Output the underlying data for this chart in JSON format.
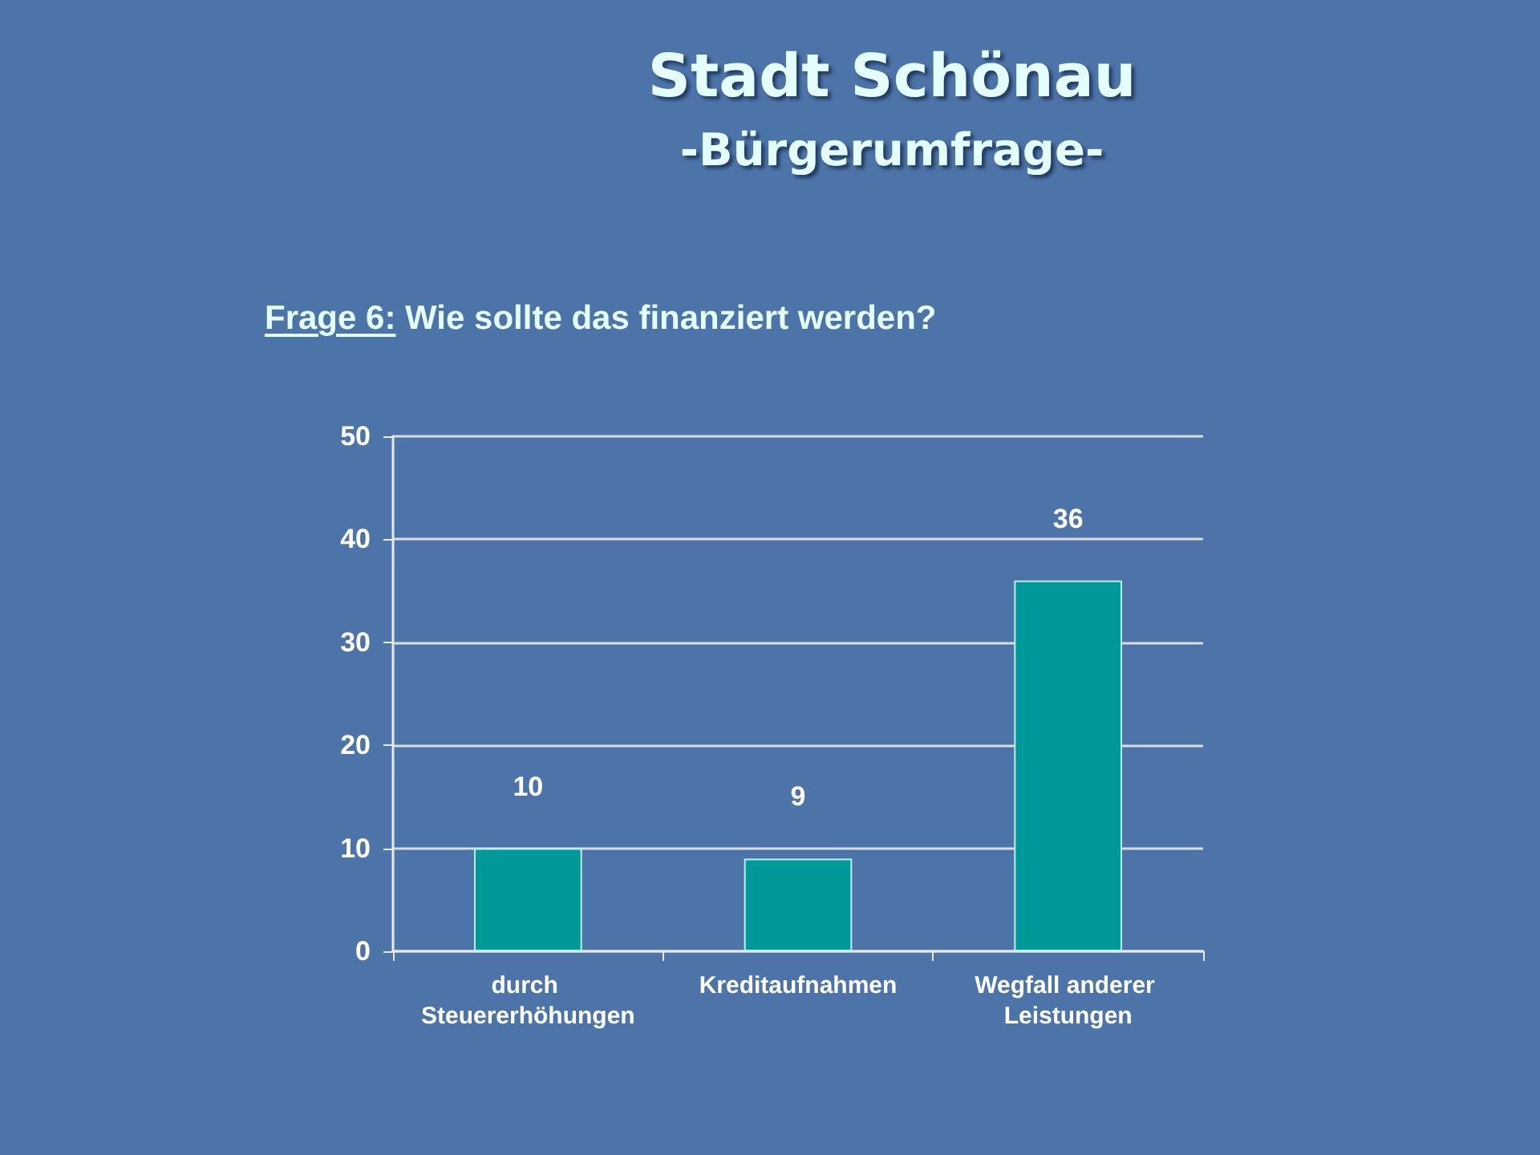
{
  "chart_data": {
    "type": "bar",
    "title": "Stadt Schönau",
    "subtitle": "-Bürgerumfrage-",
    "annotations": [
      "Frage 6: Wie sollte das finanziert werden?"
    ],
    "categories": [
      "durch Steuererhöhungen",
      "Kreditaufnahmen",
      "Wegfall anderer Leistungen"
    ],
    "values": [
      10,
      9,
      36
    ],
    "color": "#009999",
    "ylim": [
      0,
      50
    ],
    "yticks": [
      0,
      10,
      20,
      30,
      40,
      50
    ],
    "grid": "y",
    "data_labels": true
  }
}
